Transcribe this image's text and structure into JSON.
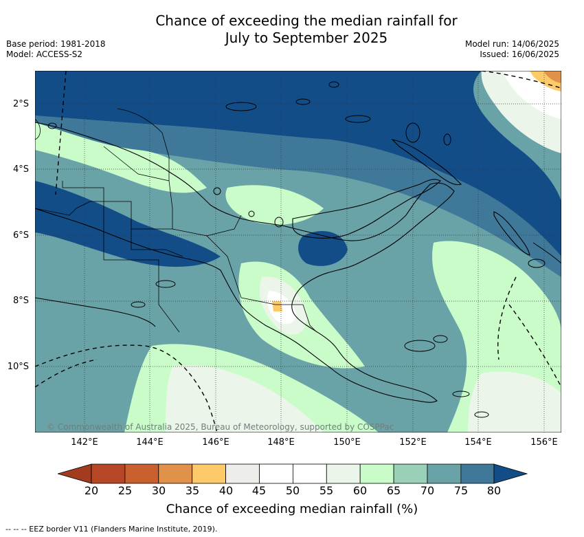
{
  "title_line1": "Chance of exceeding the median rainfall for",
  "title_line2": "July to September 2025",
  "base_period": "Base period: 1981-2018",
  "model": "Model: ACCESS-S2",
  "model_run": "Model run: 14/06/2025",
  "issued": "Issued: 16/06/2025",
  "lat_labels": [
    "2°S",
    "4°S",
    "6°S",
    "8°S",
    "10°S"
  ],
  "lon_labels": [
    "142°E",
    "144°E",
    "146°E",
    "148°E",
    "150°E",
    "152°E",
    "154°E",
    "156°E"
  ],
  "copyright": "© Commonwealth of Australia 2025, Bureau of Meteorology, supported by COSPPac",
  "colorbar": {
    "ticks": [
      "20",
      "25",
      "30",
      "35",
      "40",
      "45",
      "50",
      "55",
      "60",
      "65",
      "70",
      "75",
      "80"
    ],
    "label": "Chance of exceeding median rainfall (%)",
    "colors": [
      "#a33b1f",
      "#b54726",
      "#c9602e",
      "#e0914a",
      "#fdca6a",
      "#ededea",
      "#ffffff",
      "#ffffff",
      "#ebf5ea",
      "#c9fcc9",
      "#9ad0b8",
      "#6aa3a7",
      "#3f7898",
      "#134d88"
    ]
  },
  "footnote": "--  --  -- EEZ border V11 (Flanders Marine Institute, 2019)."
}
